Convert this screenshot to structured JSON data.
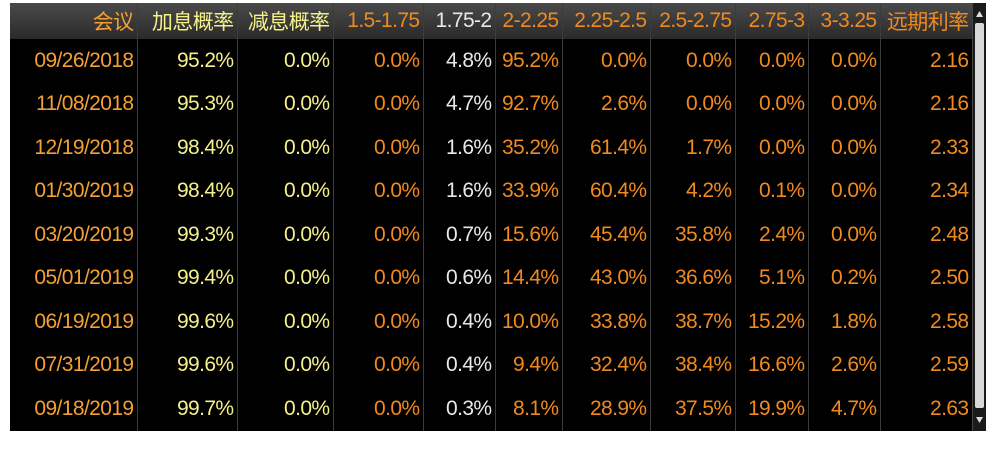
{
  "table": {
    "header": [
      "会议",
      "加息概率",
      "减息概率",
      "1.5-1.75",
      "1.75-2",
      "2-2.25",
      "2.25-2.5",
      "2.5-2.75",
      "2.75-3",
      "3-3.25",
      "远期利率"
    ],
    "rows": [
      [
        "09/26/2018",
        "95.2%",
        "0.0%",
        "0.0%",
        "4.8%",
        "95.2%",
        "0.0%",
        "0.0%",
        "0.0%",
        "0.0%",
        "2.16"
      ],
      [
        "11/08/2018",
        "95.3%",
        "0.0%",
        "0.0%",
        "4.7%",
        "92.7%",
        "2.6%",
        "0.0%",
        "0.0%",
        "0.0%",
        "2.16"
      ],
      [
        "12/19/2018",
        "98.4%",
        "0.0%",
        "0.0%",
        "1.6%",
        "35.2%",
        "61.4%",
        "1.7%",
        "0.0%",
        "0.0%",
        "2.33"
      ],
      [
        "01/30/2019",
        "98.4%",
        "0.0%",
        "0.0%",
        "1.6%",
        "33.9%",
        "60.4%",
        "4.2%",
        "0.1%",
        "0.0%",
        "2.34"
      ],
      [
        "03/20/2019",
        "99.3%",
        "0.0%",
        "0.0%",
        "0.7%",
        "15.6%",
        "45.4%",
        "35.8%",
        "2.4%",
        "0.0%",
        "2.48"
      ],
      [
        "05/01/2019",
        "99.4%",
        "0.0%",
        "0.0%",
        "0.6%",
        "14.4%",
        "43.0%",
        "36.6%",
        "5.1%",
        "0.2%",
        "2.50"
      ],
      [
        "06/19/2019",
        "99.6%",
        "0.0%",
        "0.0%",
        "0.4%",
        "10.0%",
        "33.8%",
        "38.7%",
        "15.2%",
        "1.8%",
        "2.58"
      ],
      [
        "07/31/2019",
        "99.6%",
        "0.0%",
        "0.0%",
        "0.4%",
        "9.4%",
        "32.4%",
        "38.4%",
        "16.6%",
        "2.6%",
        "2.59"
      ],
      [
        "09/18/2019",
        "99.7%",
        "0.0%",
        "0.0%",
        "0.3%",
        "8.1%",
        "28.9%",
        "37.5%",
        "19.9%",
        "4.7%",
        "2.63"
      ]
    ]
  }
}
